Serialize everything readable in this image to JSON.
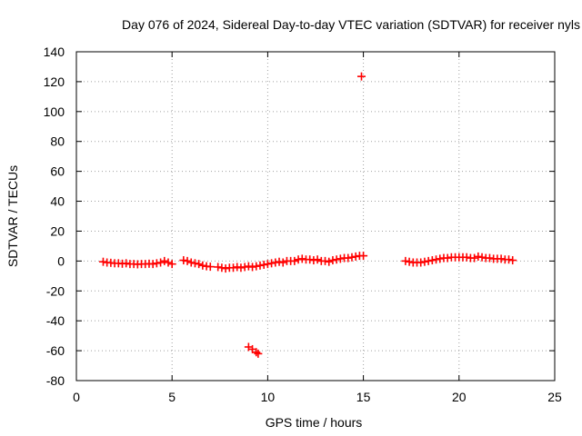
{
  "chart_data": {
    "type": "scatter",
    "title": "Day 076 of 2024, Sidereal Day-to-day VTEC variation (SDTVAR) for receiver nyls",
    "xlabel": "GPS time / hours",
    "ylabel": "SDTVAR / TECUs",
    "xlim": [
      0,
      25
    ],
    "ylim": [
      -80,
      140
    ],
    "xticks": [
      0,
      5,
      10,
      15,
      20,
      25
    ],
    "yticks": [
      -80,
      -60,
      -40,
      -20,
      0,
      20,
      40,
      60,
      80,
      100,
      120,
      140
    ],
    "grid": true,
    "marker": "plus",
    "color": "#ff0000",
    "series": [
      {
        "name": "SDTVAR",
        "points": [
          [
            1.4,
            -0.5
          ],
          [
            1.6,
            -1
          ],
          [
            1.8,
            -1.2
          ],
          [
            2.0,
            -1.5
          ],
          [
            2.2,
            -1.5
          ],
          [
            2.4,
            -1.8
          ],
          [
            2.6,
            -1.5
          ],
          [
            2.8,
            -2.0
          ],
          [
            3.0,
            -2.0
          ],
          [
            3.2,
            -2.2
          ],
          [
            3.4,
            -2.0
          ],
          [
            3.6,
            -2.0
          ],
          [
            3.8,
            -1.8
          ],
          [
            4.0,
            -2.0
          ],
          [
            4.2,
            -1.5
          ],
          [
            4.4,
            -1.0
          ],
          [
            4.6,
            0.0
          ],
          [
            4.8,
            -1.0
          ],
          [
            5.0,
            -2.0
          ],
          [
            5.6,
            0.5
          ],
          [
            5.8,
            0.0
          ],
          [
            6.0,
            -1.0
          ],
          [
            6.2,
            -1.5
          ],
          [
            6.4,
            -2.0
          ],
          [
            6.6,
            -3.0
          ],
          [
            6.8,
            -3.5
          ],
          [
            7.0,
            -3.8
          ],
          [
            7.4,
            -4.0
          ],
          [
            7.6,
            -4.5
          ],
          [
            7.8,
            -5.0
          ],
          [
            8.0,
            -4.5
          ],
          [
            8.2,
            -4.5
          ],
          [
            8.4,
            -4.0
          ],
          [
            8.6,
            -4.5
          ],
          [
            8.8,
            -4.0
          ],
          [
            9.0,
            -3.5
          ],
          [
            9.2,
            -4.0
          ],
          [
            9.4,
            -3.5
          ],
          [
            9.6,
            -3.0
          ],
          [
            9.8,
            -2.5
          ],
          [
            10.0,
            -2.0
          ],
          [
            10.2,
            -1.5
          ],
          [
            10.4,
            -1.0
          ],
          [
            10.6,
            -0.5
          ],
          [
            10.8,
            -1.0
          ],
          [
            11.0,
            0.0
          ],
          [
            11.2,
            0.0
          ],
          [
            11.4,
            0.0
          ],
          [
            11.6,
            1.0
          ],
          [
            11.8,
            1.5
          ],
          [
            12.0,
            1.0
          ],
          [
            12.2,
            1.0
          ],
          [
            12.4,
            0.5
          ],
          [
            12.6,
            1.0
          ],
          [
            12.8,
            0.0
          ],
          [
            13.0,
            0.0
          ],
          [
            13.2,
            -0.5
          ],
          [
            13.4,
            0.5
          ],
          [
            13.6,
            1.0
          ],
          [
            13.8,
            1.5
          ],
          [
            14.0,
            2.0
          ],
          [
            14.2,
            2.0
          ],
          [
            14.4,
            2.5
          ],
          [
            14.6,
            3.0
          ],
          [
            14.8,
            3.5
          ],
          [
            15.0,
            3.5
          ],
          [
            17.2,
            0.0
          ],
          [
            17.4,
            -0.5
          ],
          [
            17.6,
            -1.0
          ],
          [
            17.8,
            -1.0
          ],
          [
            18.0,
            -1.0
          ],
          [
            18.2,
            -0.5
          ],
          [
            18.4,
            0.0
          ],
          [
            18.6,
            0.5
          ],
          [
            18.8,
            1.0
          ],
          [
            19.0,
            1.5
          ],
          [
            19.2,
            2.0
          ],
          [
            19.4,
            2.0
          ],
          [
            19.6,
            2.5
          ],
          [
            19.8,
            2.5
          ],
          [
            20.0,
            2.5
          ],
          [
            20.2,
            2.5
          ],
          [
            20.4,
            2.5
          ],
          [
            20.6,
            2.0
          ],
          [
            20.8,
            2.0
          ],
          [
            21.0,
            3.0
          ],
          [
            21.2,
            2.5
          ],
          [
            21.4,
            2.0
          ],
          [
            21.6,
            2.0
          ],
          [
            21.8,
            1.5
          ],
          [
            22.0,
            1.5
          ],
          [
            22.2,
            1.5
          ],
          [
            22.4,
            1.0
          ],
          [
            22.6,
            1.0
          ],
          [
            22.8,
            0.5
          ],
          [
            9.0,
            -57.5
          ],
          [
            9.2,
            -59.0
          ],
          [
            9.4,
            -61.0
          ],
          [
            9.5,
            -62.0
          ],
          [
            14.9,
            123.5
          ]
        ]
      }
    ]
  }
}
